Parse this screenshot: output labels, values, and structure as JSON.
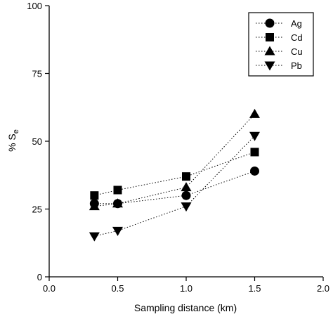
{
  "chart_data": {
    "type": "scatter",
    "title": "",
    "xlabel": "Sampling distance (km)",
    "ylabel": {
      "base": "% S",
      "subscript": "e"
    },
    "xlim": [
      0.0,
      2.0
    ],
    "ylim": [
      0,
      100
    ],
    "xticks": [
      "0.0",
      "0.5",
      "1.0",
      "1.5",
      "2.0"
    ],
    "yticks": [
      "0",
      "25",
      "50",
      "75",
      "100"
    ],
    "legend_placement": "top-right",
    "line_style": "dotted",
    "grid": false,
    "x": [
      0.33,
      0.5,
      1.0,
      1.5
    ],
    "series": [
      {
        "name": "Ag",
        "marker": "circle",
        "values": [
          27,
          27,
          30,
          39
        ]
      },
      {
        "name": "Cd",
        "marker": "square",
        "values": [
          30,
          32,
          37,
          46
        ]
      },
      {
        "name": "Cu",
        "marker": "triangle-up",
        "values": [
          26,
          27,
          33,
          60
        ]
      },
      {
        "name": "Pb",
        "marker": "triangle-down",
        "values": [
          15,
          17,
          26,
          52
        ]
      }
    ]
  }
}
